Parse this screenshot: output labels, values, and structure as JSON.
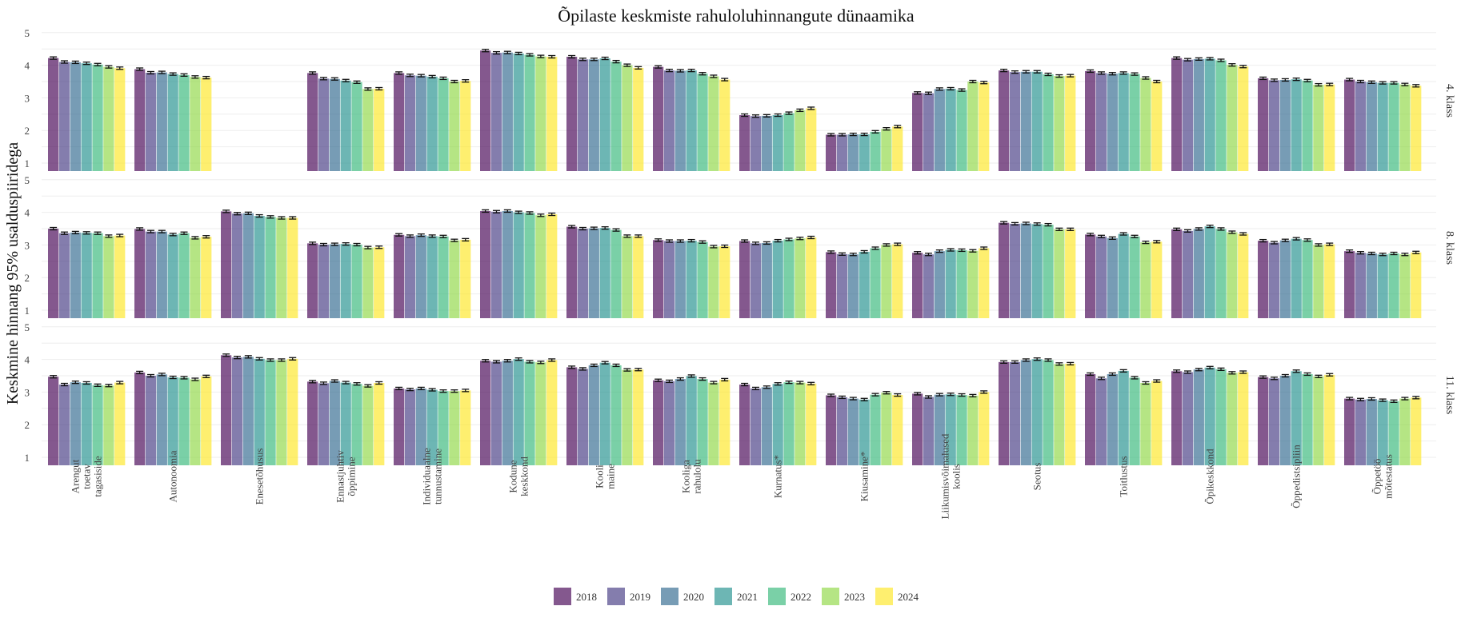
{
  "chart_data": {
    "type": "bar",
    "title": "Õpilaste keskmiste rahuloluhinnangute dünaamika",
    "ylabel": "Keskmine hinnang 95% usalduspiiridega",
    "xlabel": "",
    "ylim": [
      1,
      5
    ],
    "yticks": [
      1,
      2,
      3,
      4,
      5
    ],
    "grid": true,
    "legend_position": "bottom",
    "categories": [
      "Arengut toetav tagasiside",
      "Autonoomia",
      "Enesetõhusus",
      "Ennastjuhtiv õppimine",
      "Individuaalne tunnustamine",
      "Kodune keskkond",
      "Kooli maine",
      "Kooliga rahulolu",
      "Kurnatus*",
      "Kiusamine*",
      "Liikumisvõimalused koolis",
      "Seotus",
      "Toitlustus",
      "Õpikeskkond",
      "Õppedistsipliin",
      "Õppetöö mõtestatus"
    ],
    "category_lines": [
      [
        "Arengut",
        "toetav",
        "tagasiside"
      ],
      [
        "Autonoomia"
      ],
      [
        "Enesetõhusus"
      ],
      [
        "Ennastjuhtiv",
        "õppimine"
      ],
      [
        "Individuaalne",
        "tunnustamine"
      ],
      [
        "Kodune",
        "keskkond"
      ],
      [
        "Kooli",
        "maine"
      ],
      [
        "Kooliga",
        "rahulolu"
      ],
      [
        "Kurnatus*"
      ],
      [
        "Kiusamine*"
      ],
      [
        "Liikumisvõimalused",
        "koolis"
      ],
      [
        "Seotus"
      ],
      [
        "Toitlustus"
      ],
      [
        "Õpikeskkond"
      ],
      [
        "Õppedistsipliin"
      ],
      [
        "Õppetöö",
        "mõtestatus"
      ]
    ],
    "series": [
      {
        "name": "2018",
        "color": "#440154"
      },
      {
        "name": "2019",
        "color": "#443a83"
      },
      {
        "name": "2020",
        "color": "#31688e"
      },
      {
        "name": "2021",
        "color": "#21908d"
      },
      {
        "name": "2022",
        "color": "#35b779"
      },
      {
        "name": "2023",
        "color": "#8fd744"
      },
      {
        "name": "2024",
        "color": "#fde725"
      }
    ],
    "panels": [
      {
        "label": "4. klass",
        "values": [
          [
            4.22,
            4.1,
            4.09,
            4.06,
            4.02,
            3.95,
            3.91
          ],
          [
            3.88,
            3.77,
            3.78,
            3.73,
            3.7,
            3.64,
            3.62
          ],
          [
            null,
            null,
            null,
            null,
            null,
            null,
            null
          ],
          [
            3.76,
            3.59,
            3.58,
            3.53,
            3.48,
            3.27,
            3.28
          ],
          [
            3.76,
            3.69,
            3.68,
            3.65,
            3.6,
            3.5,
            3.52
          ],
          [
            4.45,
            4.38,
            4.39,
            4.36,
            4.32,
            4.27,
            4.26
          ],
          [
            4.26,
            4.18,
            4.18,
            4.21,
            4.11,
            4.0,
            3.92
          ],
          [
            3.95,
            3.84,
            3.83,
            3.84,
            3.74,
            3.66,
            3.56
          ],
          [
            2.47,
            2.44,
            2.45,
            2.47,
            2.53,
            2.62,
            2.68
          ],
          [
            1.87,
            1.87,
            1.88,
            1.88,
            1.96,
            2.05,
            2.12
          ],
          [
            3.15,
            3.14,
            3.27,
            3.28,
            3.24,
            3.5,
            3.47
          ],
          [
            3.84,
            3.79,
            3.8,
            3.8,
            3.72,
            3.67,
            3.68
          ],
          [
            3.82,
            3.76,
            3.74,
            3.76,
            3.73,
            3.61,
            3.5
          ],
          [
            4.22,
            4.17,
            4.19,
            4.2,
            4.15,
            4.01,
            3.96
          ],
          [
            3.6,
            3.54,
            3.55,
            3.57,
            3.53,
            3.4,
            3.41
          ],
          [
            3.56,
            3.5,
            3.48,
            3.46,
            3.46,
            3.41,
            3.37
          ]
        ]
      },
      {
        "label": "8. klass",
        "values": [
          [
            3.5,
            3.36,
            3.38,
            3.37,
            3.36,
            3.27,
            3.29
          ],
          [
            3.49,
            3.41,
            3.41,
            3.32,
            3.36,
            3.22,
            3.25
          ],
          [
            4.03,
            3.96,
            3.97,
            3.89,
            3.86,
            3.83,
            3.83
          ],
          [
            3.05,
            3.01,
            3.02,
            3.03,
            3.01,
            2.92,
            2.93
          ],
          [
            3.31,
            3.27,
            3.3,
            3.27,
            3.26,
            3.14,
            3.16
          ],
          [
            4.04,
            4.02,
            4.04,
            4.0,
            3.98,
            3.91,
            3.94
          ],
          [
            3.56,
            3.5,
            3.51,
            3.52,
            3.46,
            3.27,
            3.27
          ],
          [
            3.15,
            3.12,
            3.12,
            3.13,
            3.09,
            2.95,
            2.96
          ],
          [
            3.12,
            3.05,
            3.06,
            3.13,
            3.17,
            3.2,
            3.23
          ],
          [
            2.78,
            2.72,
            2.71,
            2.79,
            2.9,
            3.0,
            3.02
          ],
          [
            2.76,
            2.71,
            2.81,
            2.85,
            2.84,
            2.82,
            2.9
          ],
          [
            3.68,
            3.65,
            3.66,
            3.64,
            3.62,
            3.48,
            3.48
          ],
          [
            3.32,
            3.26,
            3.21,
            3.34,
            3.26,
            3.08,
            3.1
          ],
          [
            3.48,
            3.43,
            3.49,
            3.57,
            3.49,
            3.39,
            3.34
          ],
          [
            3.13,
            3.07,
            3.14,
            3.19,
            3.15,
            3.0,
            3.02
          ],
          [
            2.81,
            2.76,
            2.74,
            2.71,
            2.74,
            2.71,
            2.77
          ]
        ]
      },
      {
        "label": "11. klass",
        "values": [
          [
            3.47,
            3.23,
            3.3,
            3.28,
            3.21,
            3.2,
            3.29
          ],
          [
            3.6,
            3.5,
            3.54,
            3.45,
            3.44,
            3.39,
            3.48
          ],
          [
            4.13,
            4.06,
            4.08,
            4.02,
            3.98,
            3.98,
            4.02
          ],
          [
            3.32,
            3.27,
            3.34,
            3.29,
            3.25,
            3.19,
            3.28
          ],
          [
            3.11,
            3.08,
            3.11,
            3.07,
            3.03,
            3.03,
            3.05
          ],
          [
            3.96,
            3.93,
            3.96,
            4.01,
            3.93,
            3.91,
            3.98
          ],
          [
            3.76,
            3.71,
            3.82,
            3.9,
            3.82,
            3.68,
            3.69
          ],
          [
            3.36,
            3.33,
            3.4,
            3.49,
            3.4,
            3.29,
            3.38
          ],
          [
            3.23,
            3.11,
            3.15,
            3.25,
            3.3,
            3.29,
            3.26
          ],
          [
            2.9,
            2.84,
            2.8,
            2.77,
            2.92,
            2.98,
            2.91
          ],
          [
            2.95,
            2.85,
            2.92,
            2.93,
            2.91,
            2.89,
            3.0
          ],
          [
            3.92,
            3.92,
            3.98,
            4.01,
            3.98,
            3.86,
            3.87
          ],
          [
            3.55,
            3.42,
            3.55,
            3.65,
            3.44,
            3.28,
            3.34
          ],
          [
            3.64,
            3.61,
            3.69,
            3.75,
            3.7,
            3.59,
            3.61
          ],
          [
            3.46,
            3.42,
            3.5,
            3.64,
            3.55,
            3.48,
            3.53
          ],
          [
            2.8,
            2.77,
            2.79,
            2.75,
            2.72,
            2.8,
            2.83
          ]
        ]
      }
    ]
  }
}
